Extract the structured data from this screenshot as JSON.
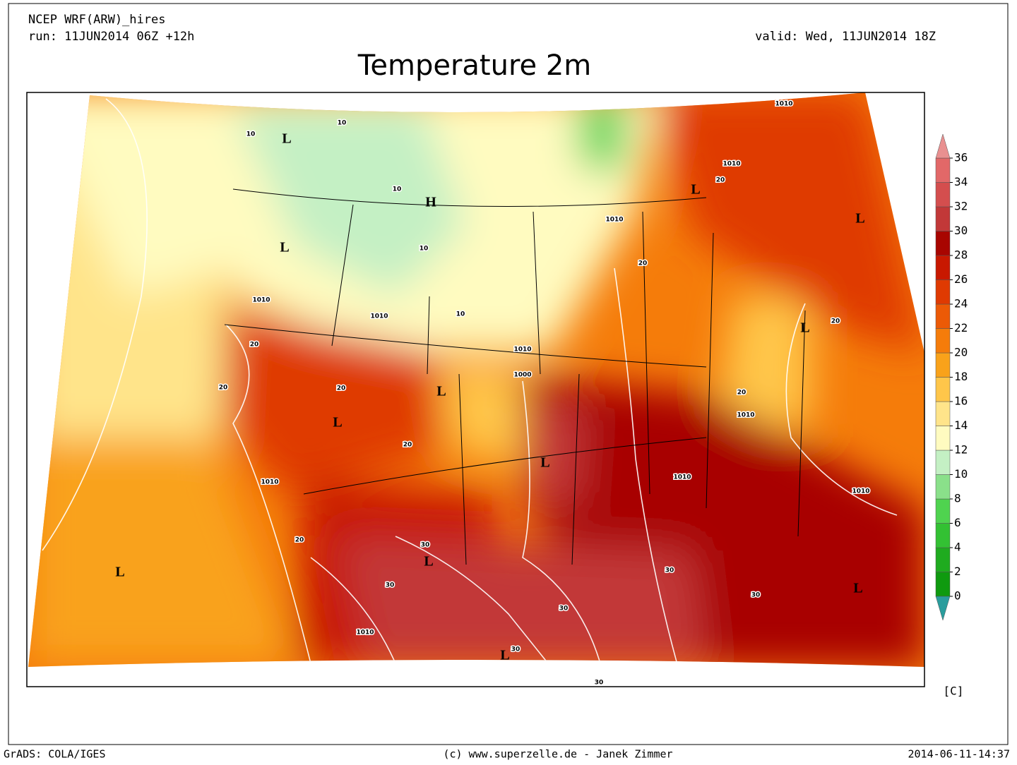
{
  "header": {
    "model": "NCEP WRF(ARW)_hires",
    "run": "run: 11JUN2014 06Z +12h",
    "valid": "valid: Wed, 11JUN2014 18Z",
    "title": "Temperature 2m"
  },
  "map": {
    "labels": [
      "L",
      "H",
      "L",
      "L",
      "L",
      "L",
      "L",
      "L",
      "L",
      "L",
      "L",
      "L",
      "L",
      "1010",
      "1010",
      "1010",
      "1010",
      "1010",
      "1010",
      "1000",
      "1010",
      "1010",
      "1010",
      "1010",
      "1010",
      "20",
      "20",
      "20",
      "20",
      "20",
      "20",
      "20",
      "20",
      "20",
      "10",
      "10",
      "10",
      "10",
      "10",
      "30",
      "30",
      "30",
      "30",
      "30",
      "30",
      "30"
    ]
  },
  "colorbar": {
    "ticks": [
      0,
      2,
      4,
      6,
      8,
      10,
      12,
      14,
      16,
      18,
      20,
      22,
      24,
      26,
      28,
      30,
      32,
      34,
      36
    ],
    "colors": [
      "#0f9a0f",
      "#1fab1f",
      "#33c133",
      "#4fd34f",
      "#8ae08a",
      "#c4f0c4",
      "#fffbc0",
      "#ffe48a",
      "#ffc64a",
      "#f9a21a",
      "#f57c0a",
      "#ec5a06",
      "#df3a02",
      "#c81800",
      "#a80500",
      "#c23838",
      "#d44e4e",
      "#e26868"
    ],
    "under_color": "#2a9d9d",
    "over_color": "#e99090",
    "unit": "[C]"
  },
  "footer": {
    "left": "GrADS: COLA/IGES",
    "center": "(c) www.superzelle.de - Janek Zimmer",
    "right": "2014-06-11-14:37"
  }
}
